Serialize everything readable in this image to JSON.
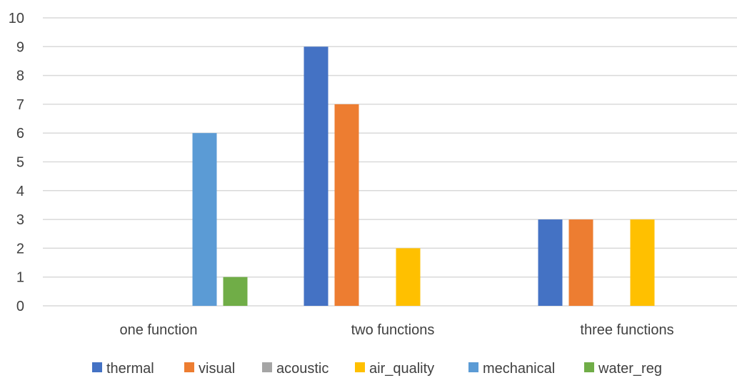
{
  "chart_data": {
    "type": "bar",
    "categories": [
      "one function",
      "two functions",
      "three functions"
    ],
    "series": [
      {
        "name": "thermal",
        "color": "#4472c4",
        "values": [
          0,
          9,
          3
        ]
      },
      {
        "name": "visual",
        "color": "#ed7d31",
        "values": [
          0,
          7,
          3
        ]
      },
      {
        "name": "acoustic",
        "color": "#a5a5a5",
        "values": [
          0,
          0,
          0
        ]
      },
      {
        "name": "air_quality",
        "color": "#ffc000",
        "values": [
          0,
          2,
          3
        ]
      },
      {
        "name": "mechanical",
        "color": "#5b9bd5",
        "values": [
          6,
          0,
          0
        ]
      },
      {
        "name": "water_reg",
        "color": "#70ad47",
        "values": [
          1,
          0,
          0
        ]
      }
    ],
    "ylim": [
      0,
      10
    ],
    "yticks": [
      0,
      1,
      2,
      3,
      4,
      5,
      6,
      7,
      8,
      9,
      10
    ],
    "grid": true,
    "legend_position": "bottom"
  }
}
